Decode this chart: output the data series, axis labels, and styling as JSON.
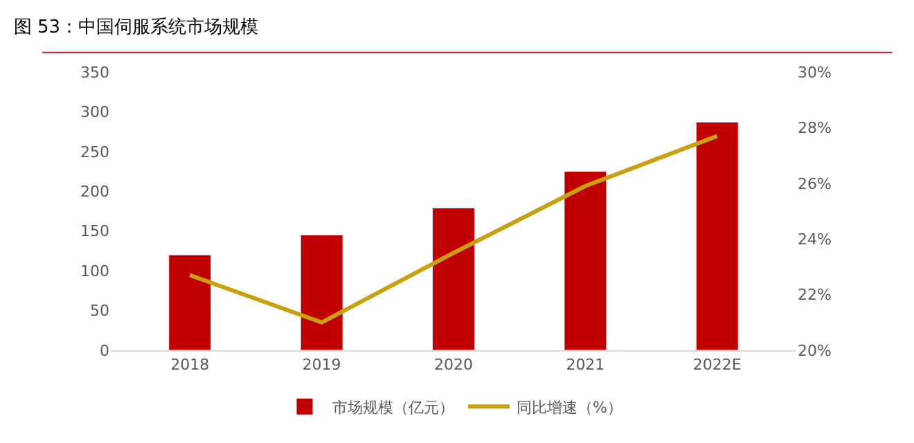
{
  "chart_data": {
    "type": "bar",
    "title": "图 53：中国伺服系统市场规模",
    "categories": [
      "2018",
      "2019",
      "2020",
      "2021",
      "2022E"
    ],
    "series": [
      {
        "name": "市场规模（亿元）",
        "color": "#c00000",
        "values": [
          120,
          145,
          179,
          225,
          287
        ]
      },
      {
        "name": "同比增速（%）",
        "color": "#c9a00f",
        "type": "line",
        "axis": "y2",
        "values": [
          22.7,
          21.0,
          23.5,
          25.9,
          27.7
        ]
      }
    ],
    "ylim": [
      0,
      350
    ],
    "yticks": [
      0,
      50,
      100,
      150,
      200,
      250,
      300,
      350
    ],
    "y2lim": [
      20,
      30
    ],
    "y2ticks": [
      {
        "value": 20,
        "label": "20%"
      },
      {
        "value": 22,
        "label": "22%"
      },
      {
        "value": 24,
        "label": "24%"
      },
      {
        "value": 26,
        "label": "26%"
      },
      {
        "value": 28,
        "label": "28%"
      },
      {
        "value": 30,
        "label": "30%"
      }
    ],
    "legend": "bottom",
    "marker": "none"
  }
}
